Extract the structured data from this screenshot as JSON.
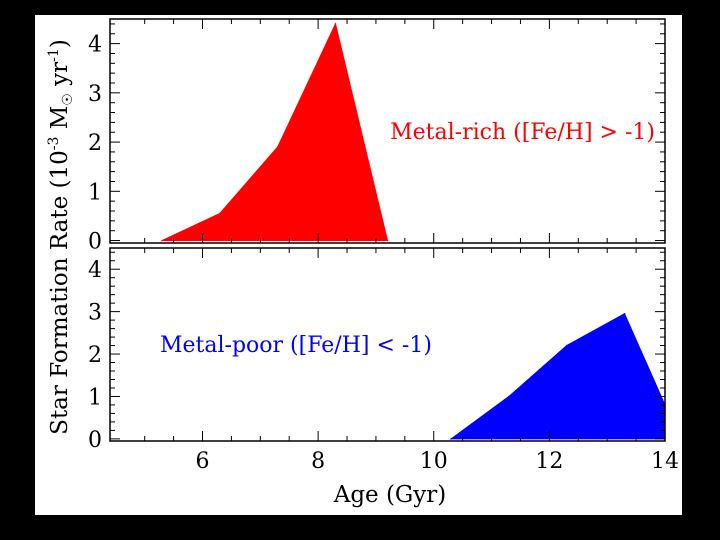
{
  "chart_data": {
    "type": "area",
    "xlabel": "Age (Gyr)",
    "ylabel": "Star Formation Rate (10",
    "ylabel_exp": "-3",
    "ylabel_mid": " M",
    "ylabel_sun": "☉",
    "ylabel_yr": " yr",
    "ylabel_exp2": "-1",
    "ylabel_end": ")",
    "xlim": [
      4.4,
      14
    ],
    "x_ticks": [
      "6",
      "8",
      "10",
      "12",
      "14"
    ],
    "y_ticks": [
      "0",
      "1",
      "2",
      "3",
      "4"
    ],
    "panels": [
      {
        "name": "Metal-rich ([Fe/H] > -1)",
        "annotation": "Metal-rich ([Fe/H] > -1)",
        "color": "#ff0000",
        "ylim": [
          -0.05,
          4.5
        ],
        "x": [
          5.3,
          6.3,
          7.3,
          8.3,
          9.2
        ],
        "values": [
          0.0,
          0.55,
          1.9,
          4.4,
          0.0
        ]
      },
      {
        "name": "Metal-poor ([Fe/H] < -1)",
        "annotation": "Metal-poor ([Fe/H] < -1)",
        "color": "#0000ff",
        "ylim": [
          -0.05,
          4.5
        ],
        "x": [
          10.3,
          11.3,
          12.3,
          13.3,
          14.0
        ],
        "values": [
          0.0,
          1.0,
          2.2,
          2.95,
          0.8
        ]
      }
    ]
  }
}
